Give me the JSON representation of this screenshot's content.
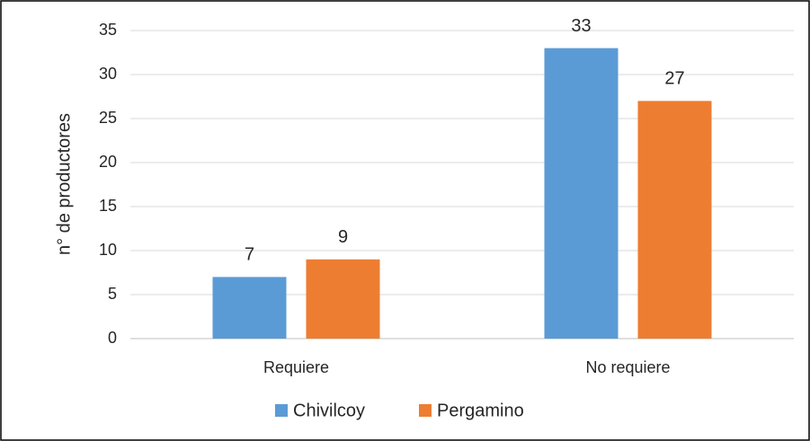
{
  "chart_data": {
    "type": "bar",
    "y_label": "n° de productores",
    "categories": [
      "Requiere",
      "No requiere"
    ],
    "series": [
      {
        "name": "Chivilcoy",
        "color": "#5b9bd5",
        "values": [
          7,
          33
        ]
      },
      {
        "name": "Pergamino",
        "color": "#ed7d31",
        "values": [
          9,
          27
        ]
      }
    ],
    "ylim": [
      0,
      35
    ],
    "yticks": [
      0,
      5,
      10,
      15,
      20,
      25,
      30,
      35
    ],
    "grid": true,
    "legend": "bottom"
  }
}
